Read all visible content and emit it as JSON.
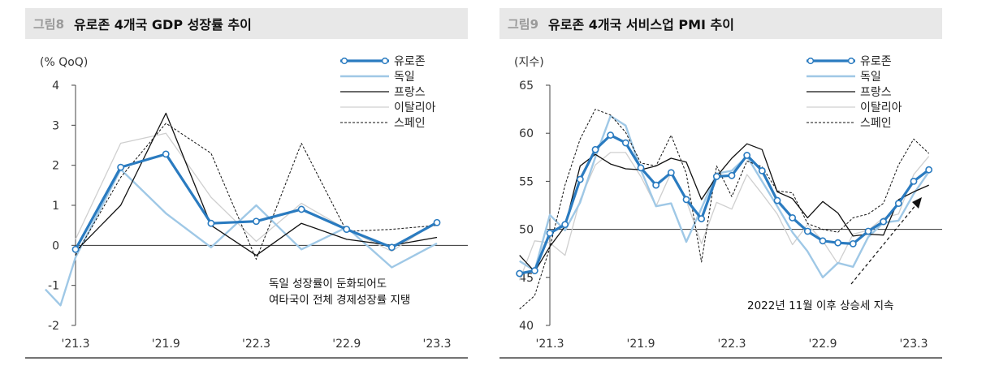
{
  "chart_data": [
    {
      "type": "line",
      "figure_label": "그림8",
      "title": "유로존 4개국 GDP 성장률 추이",
      "unit": "(% QoQ)",
      "x": [
        "'21.1",
        "'21.2",
        "'21.3",
        "'21.4",
        "'21.5",
        "'21.6",
        "'21.7",
        "'21.8",
        "'21.9",
        "'21.10",
        "'21.11",
        "'21.12",
        "'22.1",
        "'22.2",
        "'22.3",
        "'22.4",
        "'22.5",
        "'22.6",
        "'22.7",
        "'22.8",
        "'22.9",
        "'22.10",
        "'22.11",
        "'22.12",
        "'23.1",
        "'23.2",
        "'23.3"
      ],
      "x_ticks": [
        "'21.3",
        "'21.9",
        "'22.3",
        "'22.9",
        "'23.3"
      ],
      "ylim": [
        -2,
        4
      ],
      "y_ticks": [
        -2,
        -1,
        0,
        1,
        2,
        3,
        4
      ],
      "grid": false,
      "legend_position": "top-right",
      "series": [
        {
          "name": "유로존",
          "color": "#2a7bc0",
          "style": "thick-marker",
          "points": [
            [
              "'21.3",
              -0.1
            ],
            [
              "'21.6",
              1.95
            ],
            [
              "'21.9",
              2.28
            ],
            [
              "'21.12",
              0.55
            ],
            [
              "'22.3",
              0.6
            ],
            [
              "'22.6",
              0.9
            ],
            [
              "'22.9",
              0.4
            ],
            [
              "'22.12",
              -0.05
            ],
            [
              "'23.3",
              0.57
            ]
          ]
        },
        {
          "name": "독일",
          "color": "#9fc8e6",
          "style": "solid",
          "points": [
            [
              "'21.1",
              -1.1
            ],
            [
              "'21.2",
              -1.5
            ],
            [
              "'21.3",
              -0.3
            ],
            [
              "'21.6",
              1.9
            ],
            [
              "'21.9",
              0.8
            ],
            [
              "'21.12",
              -0.05
            ],
            [
              "'22.3",
              1.0
            ],
            [
              "'22.6",
              -0.1
            ],
            [
              "'22.9",
              0.45
            ],
            [
              "'22.12",
              -0.55
            ],
            [
              "'23.3",
              0.05
            ]
          ]
        },
        {
          "name": "프랑스",
          "color": "#111111",
          "style": "solid",
          "points": [
            [
              "'21.3",
              -0.15
            ],
            [
              "'21.6",
              1.0
            ],
            [
              "'21.9",
              3.3
            ],
            [
              "'21.12",
              0.5
            ],
            [
              "'22.3",
              -0.25
            ],
            [
              "'22.6",
              0.55
            ],
            [
              "'22.9",
              0.15
            ],
            [
              "'22.12",
              0.0
            ],
            [
              "'23.3",
              0.2
            ]
          ]
        },
        {
          "name": "이탈리아",
          "color": "#cfcfcf",
          "style": "solid",
          "points": [
            [
              "'21.3",
              0.15
            ],
            [
              "'21.6",
              2.55
            ],
            [
              "'21.9",
              2.8
            ],
            [
              "'21.12",
              1.2
            ],
            [
              "'22.3",
              0.1
            ],
            [
              "'22.6",
              1.05
            ],
            [
              "'22.9",
              0.4
            ],
            [
              "'22.12",
              -0.15
            ],
            [
              "'23.3",
              0.6
            ]
          ]
        },
        {
          "name": "스페인",
          "color": "#111111",
          "style": "dashed",
          "points": [
            [
              "'21.3",
              -0.25
            ],
            [
              "'21.6",
              1.7
            ],
            [
              "'21.9",
              3.05
            ],
            [
              "'21.12",
              2.3
            ],
            [
              "'22.3",
              -0.35
            ],
            [
              "'22.6",
              2.55
            ],
            [
              "'22.9",
              0.35
            ],
            [
              "'22.12",
              0.4
            ],
            [
              "'23.3",
              0.5
            ]
          ]
        }
      ],
      "annotation": [
        "독일 성장률이 둔화되어도",
        "여타국이 전체 경제성장률 지탱"
      ]
    },
    {
      "type": "line",
      "figure_label": "그림9",
      "title": "유로존 4개국 서비스업 PMI 추이",
      "unit": "(지수)",
      "x": [
        "'21.1",
        "'21.2",
        "'21.3",
        "'21.4",
        "'21.5",
        "'21.6",
        "'21.7",
        "'21.8",
        "'21.9",
        "'21.10",
        "'21.11",
        "'21.12",
        "'22.1",
        "'22.2",
        "'22.3",
        "'22.4",
        "'22.5",
        "'22.6",
        "'22.7",
        "'22.8",
        "'22.9",
        "'22.10",
        "'22.11",
        "'22.12",
        "'23.1",
        "'23.2",
        "'23.3"
      ],
      "x_ticks": [
        "'21.3",
        "'21.9",
        "'22.3",
        "'22.9",
        "'23.3"
      ],
      "ylim": [
        40,
        65
      ],
      "y_ticks": [
        40,
        45,
        50,
        55,
        60,
        65
      ],
      "reference_line": 50,
      "grid": false,
      "legend_position": "top-right",
      "series": [
        {
          "name": "유로존",
          "color": "#2a7bc0",
          "style": "thick-marker",
          "points": [
            [
              "'21.1",
              45.4
            ],
            [
              "'21.2",
              45.7
            ],
            [
              "'21.3",
              49.6
            ],
            [
              "'21.4",
              50.5
            ],
            [
              "'21.5",
              55.2
            ],
            [
              "'21.6",
              58.3
            ],
            [
              "'21.7",
              59.8
            ],
            [
              "'21.8",
              59.0
            ],
            [
              "'21.9",
              56.4
            ],
            [
              "'21.10",
              54.6
            ],
            [
              "'21.11",
              55.9
            ],
            [
              "'21.12",
              53.1
            ],
            [
              "'22.1",
              51.1
            ],
            [
              "'22.2",
              55.5
            ],
            [
              "'22.3",
              55.6
            ],
            [
              "'22.4",
              57.7
            ],
            [
              "'22.5",
              56.1
            ],
            [
              "'22.6",
              53.0
            ],
            [
              "'22.7",
              51.2
            ],
            [
              "'22.8",
              49.8
            ],
            [
              "'22.9",
              48.8
            ],
            [
              "'22.10",
              48.6
            ],
            [
              "'22.11",
              48.5
            ],
            [
              "'22.12",
              49.8
            ],
            [
              "'23.1",
              50.8
            ],
            [
              "'23.2",
              52.7
            ],
            [
              "'23.3",
              55.0
            ],
            [
              "'23.4",
              56.2
            ]
          ]
        },
        {
          "name": "독일",
          "color": "#9fc8e6",
          "style": "solid",
          "points": [
            [
              "'21.1",
              46.7
            ],
            [
              "'21.2",
              45.7
            ],
            [
              "'21.3",
              51.5
            ],
            [
              "'21.4",
              49.9
            ],
            [
              "'21.5",
              52.8
            ],
            [
              "'21.6",
              57.5
            ],
            [
              "'21.7",
              61.8
            ],
            [
              "'21.8",
              60.8
            ],
            [
              "'21.9",
              56.2
            ],
            [
              "'21.10",
              52.4
            ],
            [
              "'21.11",
              52.7
            ],
            [
              "'21.12",
              48.7
            ],
            [
              "'22.1",
              52.2
            ],
            [
              "'22.2",
              55.8
            ],
            [
              "'22.3",
              56.1
            ],
            [
              "'22.4",
              57.6
            ],
            [
              "'22.5",
              55.0
            ],
            [
              "'22.6",
              52.4
            ],
            [
              "'22.7",
              49.7
            ],
            [
              "'22.8",
              47.7
            ],
            [
              "'22.9",
              45.0
            ],
            [
              "'22.10",
              46.5
            ],
            [
              "'22.11",
              46.1
            ],
            [
              "'22.12",
              49.2
            ],
            [
              "'23.1",
              50.7
            ],
            [
              "'23.2",
              50.9
            ],
            [
              "'23.3",
              53.7
            ],
            [
              "'23.4",
              56.0
            ]
          ]
        },
        {
          "name": "프랑스",
          "color": "#111111",
          "style": "solid",
          "points": [
            [
              "'21.1",
              47.3
            ],
            [
              "'21.2",
              45.6
            ],
            [
              "'21.3",
              48.2
            ],
            [
              "'21.4",
              50.3
            ],
            [
              "'21.5",
              56.6
            ],
            [
              "'21.6",
              57.8
            ],
            [
              "'21.7",
              56.8
            ],
            [
              "'21.8",
              56.3
            ],
            [
              "'21.9",
              56.2
            ],
            [
              "'21.10",
              56.6
            ],
            [
              "'21.11",
              57.4
            ],
            [
              "'21.12",
              57.0
            ],
            [
              "'22.1",
              53.1
            ],
            [
              "'22.2",
              55.5
            ],
            [
              "'22.3",
              57.4
            ],
            [
              "'22.4",
              58.9
            ],
            [
              "'22.5",
              58.3
            ],
            [
              "'22.6",
              53.9
            ],
            [
              "'22.7",
              53.2
            ],
            [
              "'22.8",
              51.2
            ],
            [
              "'22.9",
              52.9
            ],
            [
              "'22.10",
              51.7
            ],
            [
              "'22.11",
              49.3
            ],
            [
              "'22.12",
              49.5
            ],
            [
              "'23.1",
              49.4
            ],
            [
              "'23.2",
              53.1
            ],
            [
              "'23.3",
              53.9
            ],
            [
              "'23.4",
              54.6
            ]
          ]
        },
        {
          "name": "이탈리아",
          "color": "#cfcfcf",
          "style": "solid",
          "points": [
            [
              "'21.1",
              44.7
            ],
            [
              "'21.2",
              48.8
            ],
            [
              "'21.3",
              48.6
            ],
            [
              "'21.4",
              47.3
            ],
            [
              "'21.5",
              53.1
            ],
            [
              "'21.6",
              56.7
            ],
            [
              "'21.7",
              58.0
            ],
            [
              "'21.8",
              58.0
            ],
            [
              "'21.9",
              55.5
            ],
            [
              "'21.10",
              52.4
            ],
            [
              "'21.11",
              55.9
            ],
            [
              "'21.12",
              53.0
            ],
            [
              "'22.1",
              48.5
            ],
            [
              "'22.2",
              52.8
            ],
            [
              "'22.3",
              52.1
            ],
            [
              "'22.4",
              55.7
            ],
            [
              "'22.5",
              53.7
            ],
            [
              "'22.6",
              51.6
            ],
            [
              "'22.7",
              48.4
            ],
            [
              "'22.8",
              50.5
            ],
            [
              "'22.9",
              48.8
            ],
            [
              "'22.10",
              46.4
            ],
            [
              "'22.11",
              49.5
            ],
            [
              "'22.12",
              49.9
            ],
            [
              "'23.1",
              51.2
            ],
            [
              "'23.2",
              51.6
            ],
            [
              "'23.3",
              55.7
            ],
            [
              "'23.4",
              57.6
            ]
          ]
        },
        {
          "name": "스페인",
          "color": "#111111",
          "style": "dashed",
          "points": [
            [
              "'21.1",
              41.7
            ],
            [
              "'21.2",
              43.1
            ],
            [
              "'21.3",
              48.1
            ],
            [
              "'21.4",
              54.6
            ],
            [
              "'21.5",
              59.4
            ],
            [
              "'21.6",
              62.5
            ],
            [
              "'21.7",
              61.9
            ],
            [
              "'21.8",
              60.1
            ],
            [
              "'21.9",
              56.9
            ],
            [
              "'21.10",
              56.6
            ],
            [
              "'21.11",
              59.8
            ],
            [
              "'21.12",
              55.8
            ],
            [
              "'22.1",
              46.6
            ],
            [
              "'22.2",
              56.6
            ],
            [
              "'22.3",
              53.4
            ],
            [
              "'22.4",
              57.1
            ],
            [
              "'22.5",
              56.5
            ],
            [
              "'22.6",
              54.0
            ],
            [
              "'22.7",
              53.8
            ],
            [
              "'22.8",
              50.6
            ],
            [
              "'22.9",
              50.0
            ],
            [
              "'22.10",
              49.7
            ],
            [
              "'22.11",
              51.2
            ],
            [
              "'22.12",
              51.6
            ],
            [
              "'23.1",
              52.7
            ],
            [
              "'23.2",
              56.7
            ],
            [
              "'23.3",
              59.4
            ],
            [
              "'23.4",
              57.9
            ]
          ]
        }
      ],
      "annotation": [
        "2022년 11월 이후 상승세 지속"
      ]
    }
  ]
}
